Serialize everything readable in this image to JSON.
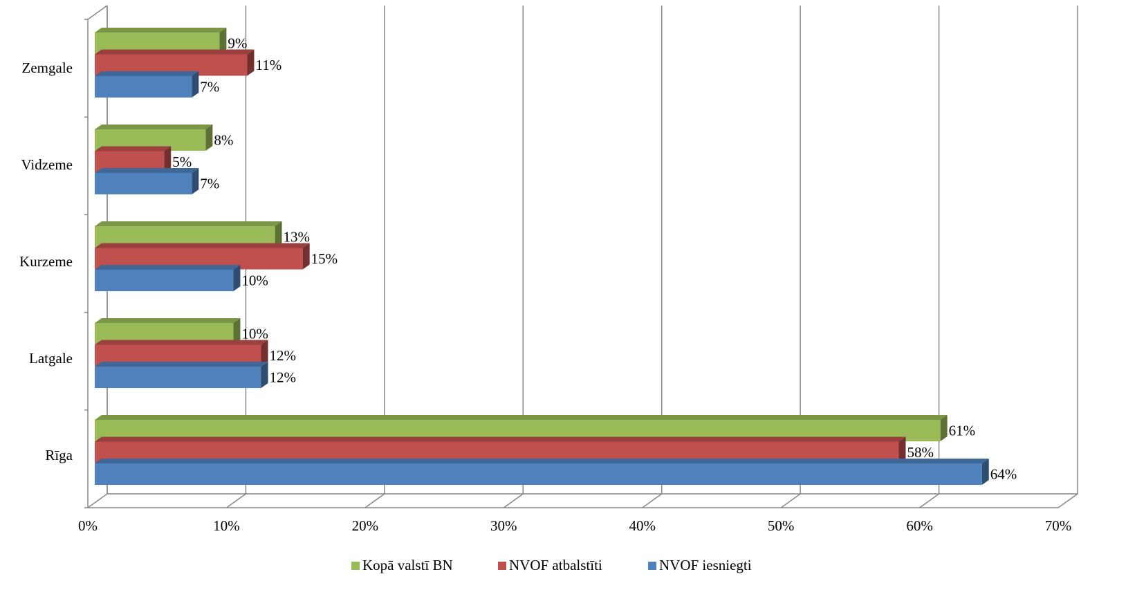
{
  "chart_data": {
    "type": "bar3d_horizontal",
    "categories": [
      "Zemgale",
      "Vidzeme",
      "Kurzeme",
      "Latgale",
      "Rīga"
    ],
    "series": [
      {
        "name": "Kopā valstī BN",
        "color": "#9bbb59",
        "values": [
          9,
          8,
          13,
          10,
          61
        ],
        "value_labels": [
          "9%",
          "8%",
          "13%",
          "10%",
          "61%"
        ]
      },
      {
        "name": "NVOF atbalstīti",
        "color": "#c0504d",
        "values": [
          11,
          5,
          15,
          12,
          58
        ],
        "value_labels": [
          "11%",
          "5%",
          "15%",
          "12%",
          "58%"
        ]
      },
      {
        "name": "NVOF iesniegti",
        "color": "#4f81bd",
        "values": [
          7,
          7,
          10,
          12,
          64
        ],
        "value_labels": [
          "7%",
          "7%",
          "10%",
          "12%",
          "64%"
        ]
      }
    ],
    "xlim": [
      0,
      70
    ],
    "xticks": [
      {
        "value": 0,
        "label": "0%"
      },
      {
        "value": 10,
        "label": "10%"
      },
      {
        "value": 20,
        "label": "20%"
      },
      {
        "value": 30,
        "label": "30%"
      },
      {
        "value": 40,
        "label": "40%"
      },
      {
        "value": 50,
        "label": "50%"
      },
      {
        "value": 60,
        "label": "60%"
      },
      {
        "value": 70,
        "label": "70%"
      }
    ],
    "grid": true,
    "legend": "bottom"
  }
}
